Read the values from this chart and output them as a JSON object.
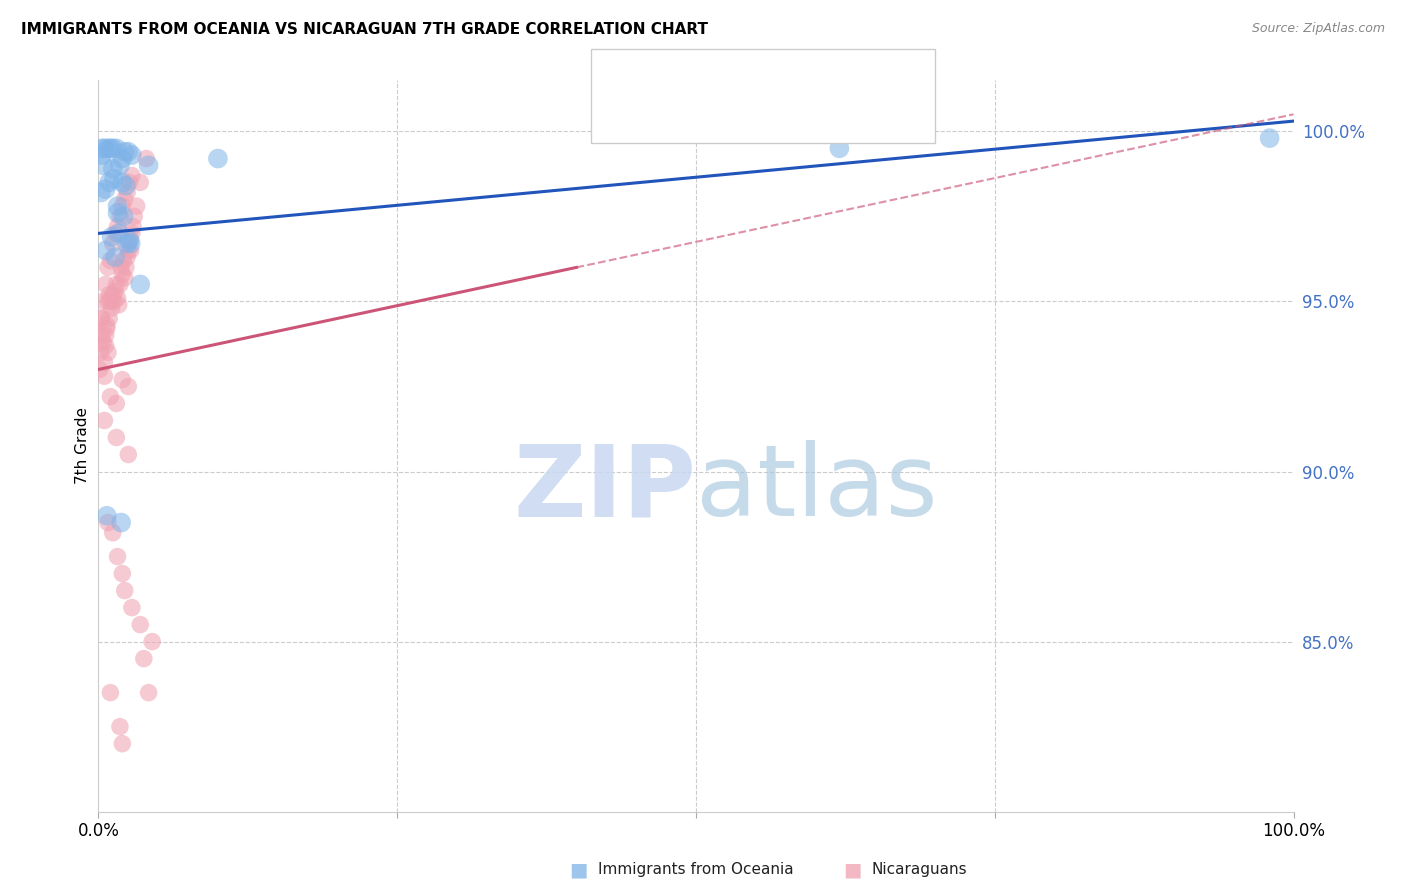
{
  "title": "IMMIGRANTS FROM OCEANIA VS NICARAGUAN 7TH GRADE CORRELATION CHART",
  "source": "Source: ZipAtlas.com",
  "ylabel": "7th Grade",
  "y_ticks": [
    85.0,
    90.0,
    95.0,
    100.0
  ],
  "y_tick_labels": [
    "85.0%",
    "90.0%",
    "95.0%",
    "100.0%"
  ],
  "blue_color": "#7EB3E8",
  "pink_color": "#F0A0B0",
  "blue_line_color": "#2255BB",
  "pink_line_color": "#CC5577",
  "xlim": [
    0,
    100
  ],
  "ylim": [
    80,
    101.5
  ],
  "blue_scatter_x": [
    0.3,
    0.5,
    0.8,
    1.0,
    1.2,
    1.5,
    1.8,
    2.0,
    2.2,
    2.5,
    2.8,
    1.3,
    0.9,
    1.6,
    2.1,
    1.1,
    1.7,
    2.6,
    1.4,
    2.4,
    1.9,
    3.5,
    0.4,
    1.2,
    2.7,
    10.0,
    62.0,
    98.0,
    0.6,
    2.0,
    0.2,
    0.7,
    2.3,
    1.6,
    4.2,
    0.3,
    0.6
  ],
  "blue_scatter_y": [
    99.5,
    99.5,
    99.5,
    99.5,
    99.5,
    99.5,
    99.0,
    99.2,
    99.4,
    99.4,
    99.3,
    98.6,
    98.5,
    97.8,
    97.5,
    96.9,
    97.0,
    96.8,
    96.3,
    96.7,
    88.5,
    95.5,
    99.0,
    98.9,
    96.7,
    99.2,
    99.5,
    99.8,
    98.3,
    98.5,
    98.2,
    88.7,
    98.4,
    97.6,
    99.0,
    99.3,
    96.5
  ],
  "pink_scatter_x": [
    0.1,
    0.2,
    0.3,
    0.5,
    0.6,
    0.7,
    0.8,
    0.9,
    1.0,
    1.1,
    1.2,
    1.3,
    1.4,
    1.5,
    1.6,
    1.7,
    1.8,
    1.9,
    2.0,
    2.1,
    2.2,
    2.3,
    2.4,
    2.5,
    2.6,
    2.7,
    2.8,
    2.9,
    3.0,
    3.2,
    3.5,
    4.0,
    0.2,
    0.4,
    0.6,
    0.8,
    1.0,
    1.2,
    1.4,
    1.6,
    1.8,
    2.0,
    2.2,
    2.4,
    2.6,
    2.8,
    1.5,
    2.5,
    1.0,
    2.0,
    0.5,
    0.8,
    1.2,
    1.6,
    2.0,
    3.5,
    2.2,
    2.8,
    1.8,
    4.5,
    0.3,
    0.4,
    0.5,
    0.6,
    0.7,
    0.8,
    0.9,
    1.5,
    2.5,
    3.8,
    4.2,
    1.0,
    2.0
  ],
  "pink_scatter_y": [
    93.0,
    93.5,
    94.0,
    92.8,
    93.7,
    94.2,
    93.5,
    94.5,
    95.0,
    94.8,
    95.2,
    95.0,
    95.3,
    95.5,
    95.1,
    94.9,
    95.5,
    96.0,
    95.8,
    96.2,
    95.7,
    96.0,
    96.3,
    96.5,
    96.8,
    96.5,
    97.0,
    97.2,
    97.5,
    97.8,
    98.5,
    99.2,
    94.5,
    95.0,
    95.5,
    96.0,
    96.2,
    96.7,
    97.0,
    97.2,
    97.5,
    97.8,
    98.0,
    98.2,
    98.5,
    98.7,
    92.0,
    92.5,
    92.2,
    92.7,
    91.5,
    88.5,
    88.2,
    87.5,
    87.0,
    85.5,
    86.5,
    86.0,
    82.5,
    85.0,
    94.5,
    93.8,
    93.2,
    94.0,
    94.3,
    95.0,
    95.2,
    91.0,
    90.5,
    84.5,
    83.5,
    83.5,
    82.0
  ],
  "blue_line_x0": 0,
  "blue_line_y0": 97.0,
  "blue_line_x1": 100,
  "blue_line_y1": 100.3,
  "pink_line_x0": 0,
  "pink_line_y0": 93.0,
  "pink_line_x1": 100,
  "pink_line_y1": 100.5,
  "pink_solid_end": 40
}
